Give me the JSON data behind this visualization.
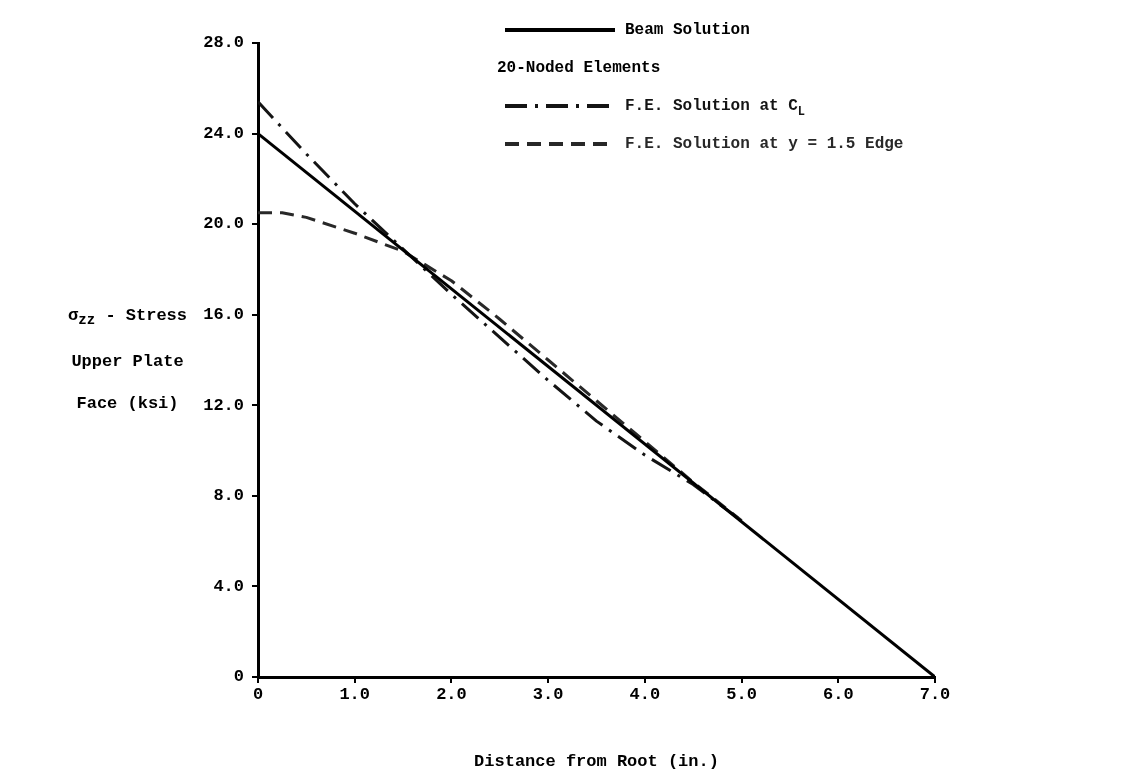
{
  "chart_data": {
    "type": "line",
    "xlabel": "Distance from Root (in.)",
    "ylabel": "σ$_{zz}$ - Stress Upper Plate Face (ksi)",
    "legend_title": "20-Noded Elements",
    "legend": "top right",
    "xlim": [
      0,
      7
    ],
    "ylim": [
      0,
      28
    ],
    "xticks": [
      0,
      {
        "value": 1,
        "label": "1.0"
      },
      {
        "value": 2,
        "label": "2.0"
      },
      {
        "value": 3,
        "label": "3.0"
      },
      {
        "value": 4,
        "label": "4.0"
      },
      {
        "value": 5,
        "label": "5.0"
      },
      {
        "value": 6,
        "label": "6.0"
      },
      {
        "value": 7,
        "label": "7.0"
      }
    ],
    "yticks": [
      0,
      {
        "value": 4,
        "label": "4.0"
      },
      {
        "value": 8,
        "label": "8.0"
      },
      {
        "value": 12,
        "label": "12.0"
      },
      {
        "value": 16,
        "label": "16.0"
      },
      {
        "value": 20,
        "label": "20.0"
      },
      {
        "value": 24,
        "label": "24.0"
      },
      {
        "value": 28,
        "label": "28.0"
      }
    ],
    "marker": "none",
    "series": [
      {
        "name": "Beam Solution",
        "color": "#000000",
        "line_style": "solid",
        "x": [
          0,
          7
        ],
        "values": [
          24,
          0
        ]
      },
      {
        "name": "F.E. Solution at C$_{L}$",
        "color": "#141414",
        "line_style": "dashdot",
        "x": [
          0,
          0.5,
          1,
          1.5,
          2,
          2.5,
          3,
          3.5,
          4,
          4.5,
          5
        ],
        "values": [
          25.4,
          23.1,
          20.9,
          18.9,
          16.9,
          15,
          13.1,
          11.3,
          9.8,
          8.5,
          6.9
        ]
      },
      {
        "name": "F.E. Solution at y = 1.5 Edge",
        "color": "#282828",
        "line_style": "dashed",
        "x": [
          0,
          0.25,
          0.5,
          1,
          1.5,
          2,
          2.5,
          3,
          3.5,
          4,
          4.5,
          5
        ],
        "values": [
          20.5,
          20.5,
          20.3,
          19.6,
          18.8,
          17.5,
          15.8,
          14,
          12.2,
          10.4,
          8.6,
          6.9
        ]
      }
    ]
  }
}
